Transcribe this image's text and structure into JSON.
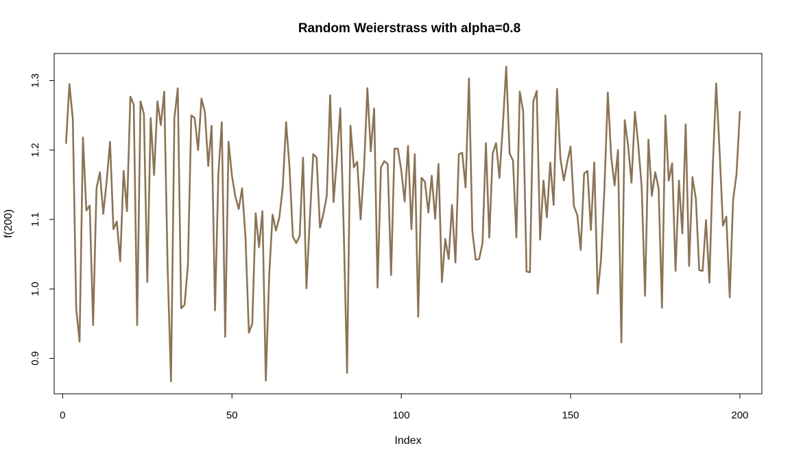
{
  "chart_data": {
    "type": "line",
    "title": "Random Weierstrass with alpha=0.8",
    "xlabel": "Index",
    "ylabel": "f(200)",
    "xlim": [
      -2.5,
      206.5
    ],
    "ylim": [
      0.849,
      1.339
    ],
    "x_ticks": [
      0,
      50,
      100,
      150,
      200
    ],
    "y_ticks": [
      0.9,
      1.0,
      1.1,
      1.2,
      1.3
    ],
    "x_tick_labels": [
      "0",
      "50",
      "100",
      "150",
      "200"
    ],
    "y_tick_labels": [
      "0.9",
      "1.0",
      "1.1",
      "1.2",
      "1.3"
    ],
    "grid": false,
    "legend": "none",
    "line_color": "#8B7355",
    "series": [
      {
        "x_start": 1,
        "x_step": 1,
        "values": [
          1.21,
          1.295,
          1.245,
          0.972,
          0.924,
          1.218,
          1.113,
          1.12,
          0.948,
          1.145,
          1.168,
          1.108,
          1.155,
          1.212,
          1.086,
          1.097,
          1.04,
          1.17,
          1.112,
          1.277,
          1.265,
          0.948,
          1.27,
          1.252,
          1.01,
          1.246,
          1.164,
          1.27,
          1.236,
          1.284,
          1.031,
          0.867,
          1.246,
          1.289,
          0.972,
          0.977,
          1.035,
          1.25,
          1.246,
          1.2,
          1.274,
          1.255,
          1.177,
          1.235,
          0.969,
          1.166,
          1.24,
          0.931,
          1.212,
          1.163,
          1.133,
          1.115,
          1.145,
          1.074,
          0.937,
          0.95,
          1.109,
          1.06,
          1.112,
          0.868,
          1.02,
          1.107,
          1.084,
          1.103,
          1.146,
          1.24,
          1.175,
          1.075,
          1.066,
          1.076,
          1.189,
          1.001,
          1.101,
          1.194,
          1.189,
          1.088,
          1.108,
          1.134,
          1.279,
          1.125,
          1.187,
          1.26,
          1.087,
          0.879,
          1.235,
          1.175,
          1.183,
          1.1,
          1.174,
          1.289,
          1.198,
          1.26,
          1.002,
          1.175,
          1.184,
          1.18,
          1.02,
          1.202,
          1.202,
          1.171,
          1.126,
          1.206,
          1.086,
          1.194,
          0.96,
          1.16,
          1.154,
          1.11,
          1.163,
          1.101,
          1.18,
          1.01,
          1.072,
          1.043,
          1.121,
          1.038,
          1.194,
          1.196,
          1.146,
          1.303,
          1.083,
          1.042,
          1.043,
          1.066,
          1.21,
          1.074,
          1.195,
          1.21,
          1.16,
          1.235,
          1.32,
          1.195,
          1.185,
          1.074,
          1.284,
          1.256,
          1.025,
          1.024,
          1.27,
          1.285,
          1.071,
          1.156,
          1.103,
          1.182,
          1.121,
          1.288,
          1.188,
          1.156,
          1.182,
          1.205,
          1.119,
          1.106,
          1.056,
          1.166,
          1.17,
          1.085,
          1.182,
          0.993,
          1.043,
          1.144,
          1.283,
          1.19,
          1.149,
          1.2,
          0.923,
          1.243,
          1.206,
          1.153,
          1.255,
          1.207,
          1.147,
          0.99,
          1.215,
          1.134,
          1.168,
          1.145,
          0.973,
          1.25,
          1.156,
          1.181,
          1.026,
          1.156,
          1.08,
          1.237,
          1.033,
          1.161,
          1.13,
          1.027,
          1.026,
          1.099,
          1.009,
          1.175,
          1.296,
          1.2,
          1.091,
          1.104,
          0.988,
          1.128,
          1.165,
          1.255
        ]
      }
    ]
  }
}
